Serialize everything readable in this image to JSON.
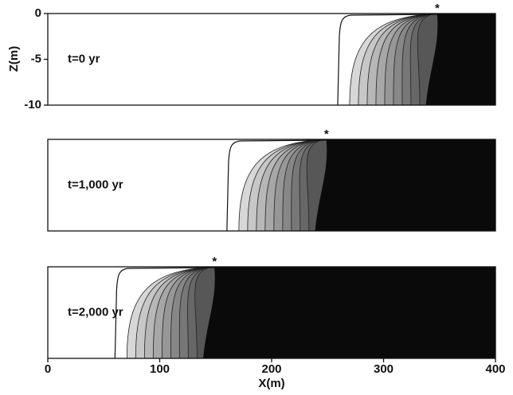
{
  "figure": {
    "x_axis": {
      "label": "X(m)",
      "xlim": [
        0,
        400
      ],
      "xticks": [
        0,
        100,
        200,
        300,
        400
      ]
    },
    "y_axis": {
      "label": "Z(m)",
      "ylim": [
        -10,
        0
      ],
      "yticks": [
        0,
        -5,
        -10
      ]
    },
    "panels": [
      {
        "label": "t=0 yr",
        "marker": "*",
        "front_x": 348
      },
      {
        "label": "t=1,000 yr",
        "marker": "*",
        "front_x": 249
      },
      {
        "label": "t=2,000 yr",
        "marker": "*",
        "front_x": 149
      }
    ]
  }
}
